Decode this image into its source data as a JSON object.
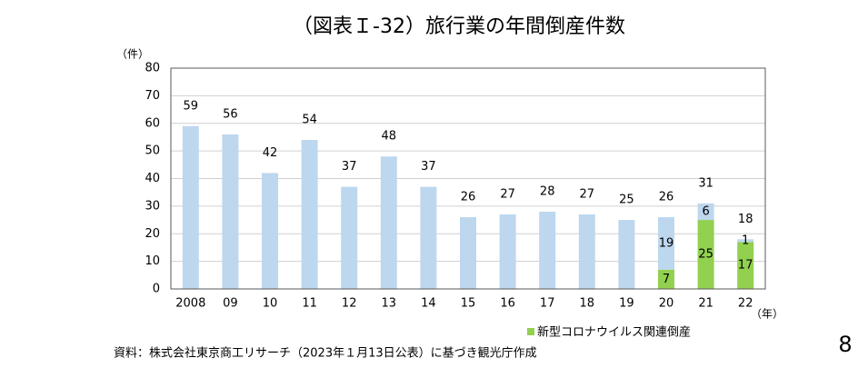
{
  "chart_data": {
    "type": "bar",
    "title": "（図表Ｉ-32）旅行業の年間倒産件数",
    "y_unit": "（件）",
    "x_unit": "（年）",
    "categories": [
      "2008",
      "09",
      "10",
      "11",
      "12",
      "13",
      "14",
      "15",
      "16",
      "17",
      "18",
      "19",
      "20",
      "21",
      "22"
    ],
    "totals": [
      59,
      56,
      42,
      54,
      37,
      48,
      37,
      26,
      27,
      28,
      27,
      25,
      26,
      31,
      18
    ],
    "series": [
      {
        "color": "#bdd7ee",
        "values": [
          59,
          56,
          42,
          54,
          37,
          48,
          37,
          26,
          27,
          28,
          27,
          25,
          19,
          6,
          1
        ]
      },
      {
        "name": "新型コロナウイルス関連倒産",
        "color": "#92d050",
        "values": [
          null,
          null,
          null,
          null,
          null,
          null,
          null,
          null,
          null,
          null,
          null,
          null,
          7,
          25,
          17
        ]
      }
    ],
    "ylim": [
      0,
      80
    ],
    "yticks": [
      0,
      10,
      20,
      30,
      40,
      50,
      60,
      70,
      80
    ],
    "grid": true,
    "source": "資料：株式会社東京商工リサーチ（2023年１月13日公表）に基づき観光庁作成",
    "page_number": "8"
  }
}
